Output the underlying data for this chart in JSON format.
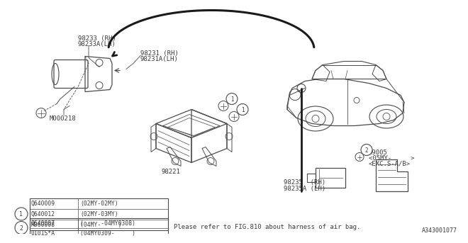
{
  "bg_color": "#ffffff",
  "diagram_id": "A343001077",
  "note": "Please refer to FIG.810 about harness of air bag.",
  "line_color": "#4a4a4a",
  "text_color": "#3a3a3a",
  "table1_rows": [
    [
      "Q640009",
      "(02MY-02MY)"
    ],
    [
      "Q640012",
      "(02MY-03MY)"
    ],
    [
      "M060008",
      "(04MY-     )"
    ]
  ],
  "table2_rows": [
    [
      "Q640007",
      "(     -04MY0308)"
    ],
    [
      "0101S*A",
      "(04MY0309-     )"
    ]
  ],
  "label_98233_rh": "98233 (RH)",
  "label_98233_lh": "98233A(LH)",
  "label_98231_rh": "98231 (RH)",
  "label_98231_lh": "98231A(LH)",
  "label_m000218": "M000218",
  "label_98221": "98221",
  "label_98235_rh": "98235  (RH)",
  "label_98235_lh": "98235A (LH)",
  "label_99005_a": "99005",
  "label_99005_b": "<05MY-     >",
  "label_99005_c": "<EXC.S-A/B>"
}
